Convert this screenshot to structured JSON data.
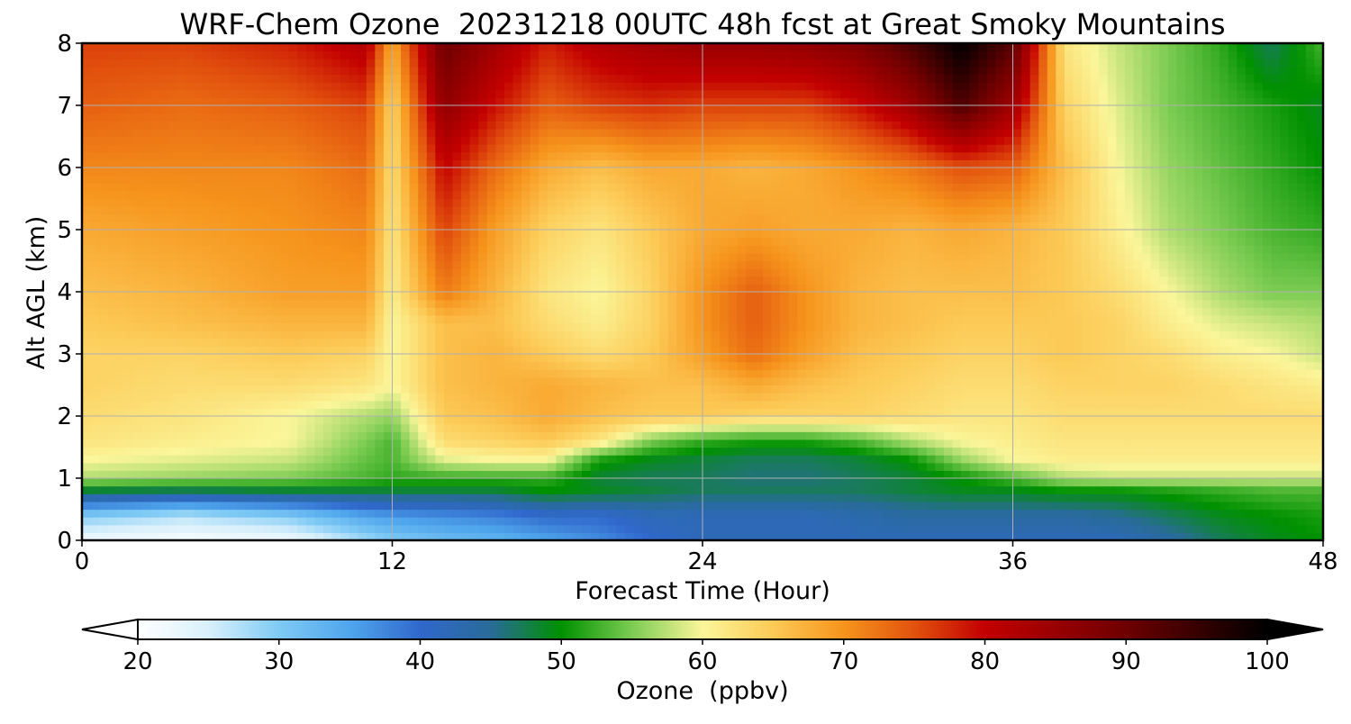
{
  "chart_data": {
    "type": "heatmap",
    "title": "WRF-Chem Ozone  20231218 00UTC 48h fcst at Great Smoky Mountains",
    "xlabel": "Forecast Time (Hour)",
    "ylabel": "Alt AGL (km)",
    "xlim": [
      0,
      48
    ],
    "ylim": [
      0,
      8
    ],
    "xticks": [
      "0",
      "12",
      "24",
      "36",
      "48"
    ],
    "yticks": [
      "0",
      "1",
      "2",
      "3",
      "4",
      "5",
      "6",
      "7",
      "8"
    ],
    "grid": true,
    "colorbar": {
      "label": "Ozone  (ppbv)",
      "range": [
        20,
        100
      ],
      "ticks": [
        "20",
        "30",
        "40",
        "50",
        "60",
        "70",
        "80",
        "90",
        "100"
      ],
      "extend": "both",
      "colors": [
        {
          "v": 20,
          "c": "#ffffff"
        },
        {
          "v": 25,
          "c": "#d9f0fb"
        },
        {
          "v": 30,
          "c": "#7fcaf5"
        },
        {
          "v": 35,
          "c": "#4fa6ec"
        },
        {
          "v": 40,
          "c": "#3068cc"
        },
        {
          "v": 45,
          "c": "#296b98"
        },
        {
          "v": 50,
          "c": "#009100"
        },
        {
          "v": 55,
          "c": "#7ccc52"
        },
        {
          "v": 60,
          "c": "#fbf69a"
        },
        {
          "v": 65,
          "c": "#fcca56"
        },
        {
          "v": 70,
          "c": "#f6941c"
        },
        {
          "v": 75,
          "c": "#e2520e"
        },
        {
          "v": 80,
          "c": "#c30000"
        },
        {
          "v": 90,
          "c": "#6e0000"
        },
        {
          "v": 100,
          "c": "#000000"
        }
      ]
    },
    "x_hours": [
      0,
      4,
      8,
      11,
      12,
      14,
      16,
      18,
      20,
      22,
      24,
      26,
      28,
      30,
      32,
      34,
      36,
      38,
      40,
      42,
      44,
      46,
      48
    ],
    "y_km": [
      0,
      0.4,
      0.8,
      1.0,
      1.3,
      1.6,
      2.0,
      2.5,
      3,
      3.5,
      4,
      5,
      6,
      7,
      8
    ],
    "z": [
      [
        22,
        21,
        22,
        28,
        30,
        32,
        33,
        35,
        37,
        40,
        42,
        42,
        42,
        42,
        42,
        42,
        42,
        42,
        42,
        44,
        47,
        49,
        50
      ],
      [
        30,
        27,
        30,
        35,
        36,
        37,
        38,
        40,
        40,
        42,
        42,
        42,
        42,
        43,
        44,
        44,
        44,
        44,
        45,
        47,
        49,
        50,
        51
      ],
      [
        48,
        47,
        48,
        48,
        48,
        48,
        48,
        50,
        49,
        48,
        47,
        47,
        47,
        47,
        48,
        49,
        49,
        50,
        50,
        51,
        52,
        53,
        53
      ],
      [
        57,
        56,
        55,
        53,
        52,
        52,
        52,
        52,
        48,
        47,
        47,
        46,
        46,
        47,
        48,
        50,
        53,
        57,
        58,
        58,
        58,
        58,
        58
      ],
      [
        60,
        59,
        58,
        54,
        53,
        59,
        60,
        60,
        51,
        49,
        48,
        47,
        47,
        48,
        50,
        56,
        60,
        61,
        61,
        61,
        61,
        61,
        61
      ],
      [
        62,
        61,
        60,
        55,
        53,
        63,
        64,
        65,
        62,
        55,
        52,
        51,
        51,
        53,
        57,
        60,
        61,
        62,
        62,
        62,
        62,
        62,
        62
      ],
      [
        63,
        62,
        60,
        57,
        56,
        65,
        66,
        68,
        66,
        65,
        65,
        64,
        64,
        64,
        63,
        62,
        62,
        63,
        63,
        63,
        63,
        63,
        63
      ],
      [
        64,
        63,
        63,
        62,
        60,
        66,
        67,
        68,
        67,
        66,
        66,
        68,
        66,
        65,
        64,
        63,
        63,
        64,
        64,
        64,
        63,
        62,
        61
      ],
      [
        64,
        64,
        65,
        64,
        60,
        66,
        67,
        65,
        63,
        65,
        69,
        73,
        69,
        66,
        65,
        64,
        64,
        65,
        64,
        63,
        61,
        60,
        58
      ],
      [
        65,
        66,
        67,
        67,
        60,
        66,
        66,
        63,
        61,
        64,
        70,
        74,
        70,
        67,
        66,
        65,
        65,
        65,
        64,
        61,
        59,
        58,
        57
      ],
      [
        66,
        67,
        69,
        69,
        61,
        72,
        67,
        62,
        60,
        64,
        70,
        74,
        70,
        67,
        66,
        66,
        66,
        65,
        63,
        60,
        57,
        55,
        55
      ],
      [
        68,
        69,
        70,
        71,
        62,
        76,
        69,
        64,
        62,
        65,
        68,
        69,
        68,
        68,
        67,
        68,
        67,
        65,
        61,
        57,
        55,
        53,
        52
      ],
      [
        71,
        71,
        71,
        73,
        63,
        80,
        73,
        68,
        66,
        68,
        68,
        67,
        68,
        70,
        72,
        75,
        74,
        66,
        60,
        56,
        54,
        52,
        50
      ],
      [
        74,
        73,
        74,
        76,
        64,
        86,
        79,
        74,
        76,
        77,
        76,
        76,
        76,
        79,
        84,
        93,
        84,
        64,
        59,
        55,
        53,
        51,
        49
      ],
      [
        76,
        76,
        78,
        82,
        68,
        90,
        84,
        78,
        82,
        84,
        85,
        85,
        86,
        88,
        93,
        100,
        92,
        62,
        58,
        55,
        52,
        47,
        53
      ]
    ]
  }
}
